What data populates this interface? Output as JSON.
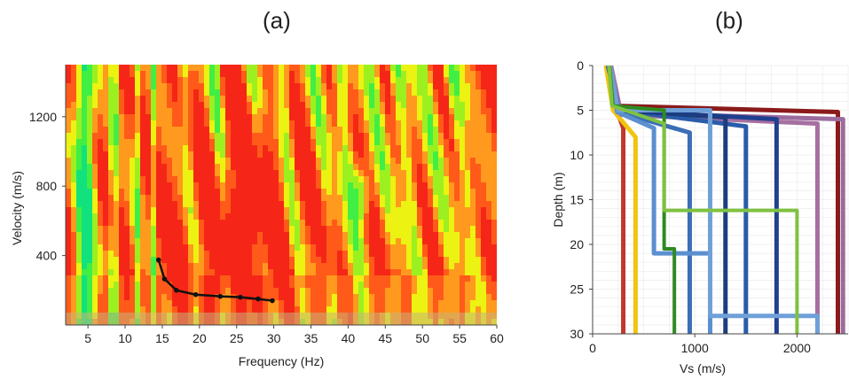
{
  "panels": {
    "a_label": "(a)",
    "b_label": "(b)"
  },
  "chart_data": [
    {
      "type": "heatmap",
      "panel": "(a)",
      "xlabel": "Frequency (Hz)",
      "ylabel": "Velocity (m/s)",
      "xlim": [
        2,
        60
      ],
      "ylim": [
        0,
        1500
      ],
      "xticks": [
        5,
        10,
        15,
        20,
        25,
        30,
        35,
        40,
        45,
        50,
        55,
        60
      ],
      "yticks": [
        400,
        800,
        1200
      ],
      "colormap": [
        "#12e27d",
        "#41ee44",
        "#9df020",
        "#ecf211",
        "#ff9a1e",
        "#ff5a1a",
        "#f52617"
      ],
      "overlay_series": {
        "name": "",
        "marker": "circle",
        "color": "#111111",
        "x": [
          14.5,
          15.3,
          16.9,
          19.5,
          22.8,
          25.5,
          27.9,
          29.8
        ],
        "y": [
          375,
          265,
          200,
          175,
          165,
          160,
          150,
          140
        ]
      }
    },
    {
      "type": "line",
      "panel": "(b)",
      "xlabel": "Vs (m/s)",
      "ylabel": "Depth (m)",
      "xlim": [
        0,
        2500
      ],
      "ylim": [
        30,
        0
      ],
      "xticks": [
        0,
        1000,
        2000
      ],
      "yticks": [
        0,
        5,
        10,
        15,
        20,
        25,
        30
      ],
      "series": [
        {
          "color": "#8b1a1a",
          "x": [
            140,
            220,
            2400,
            2400
          ],
          "y": [
            0,
            4.5,
            5.2,
            30
          ]
        },
        {
          "color": "#c0392b",
          "x": [
            150,
            230,
            300,
            300
          ],
          "y": [
            0,
            4.8,
            7.0,
            30
          ]
        },
        {
          "color": "#f1c40f",
          "x": [
            130,
            200,
            420,
            420
          ],
          "y": [
            0,
            5.0,
            8.0,
            30
          ]
        },
        {
          "color": "#9b6b9e",
          "x": [
            170,
            260,
            2450,
            2450
          ],
          "y": [
            0,
            5.3,
            6.0,
            30
          ]
        },
        {
          "color": "#a66fa0",
          "x": [
            180,
            280,
            2200,
            2200
          ],
          "y": [
            0,
            5.5,
            6.5,
            30
          ]
        },
        {
          "color": "#1f3f8f",
          "x": [
            160,
            240,
            1800,
            1800
          ],
          "y": [
            0,
            5.0,
            6.0,
            30
          ]
        },
        {
          "color": "#2a5caa",
          "x": [
            150,
            250,
            1500,
            1500
          ],
          "y": [
            0,
            5.0,
            6.8,
            30
          ]
        },
        {
          "color": "#3b6fb6",
          "x": [
            170,
            250,
            950,
            950
          ],
          "y": [
            0,
            5.2,
            7.5,
            30
          ]
        },
        {
          "color": "#1c3d80",
          "x": [
            165,
            255,
            1300,
            1300
          ],
          "y": [
            0,
            5.0,
            5.8,
            30
          ]
        },
        {
          "color": "#5b8fd0",
          "x": [
            160,
            240,
            600,
            600,
            1150,
            1150
          ],
          "y": [
            0,
            5.2,
            7.0,
            21.0,
            21.0,
            30
          ]
        },
        {
          "color": "#6fa0d8",
          "x": [
            170,
            250,
            1150,
            1150,
            2200,
            2200
          ],
          "y": [
            0,
            5.0,
            5.0,
            28.0,
            28.0,
            30
          ]
        },
        {
          "color": "#2e8b20",
          "x": [
            165,
            200,
            700,
            700,
            800,
            800
          ],
          "y": [
            0,
            4.5,
            5.0,
            20.5,
            20.5,
            30
          ]
        },
        {
          "color": "#7fc241",
          "x": [
            160,
            190,
            700,
            700,
            2000,
            2000
          ],
          "y": [
            0,
            4.5,
            6.5,
            16.2,
            16.2,
            30
          ]
        }
      ]
    }
  ]
}
